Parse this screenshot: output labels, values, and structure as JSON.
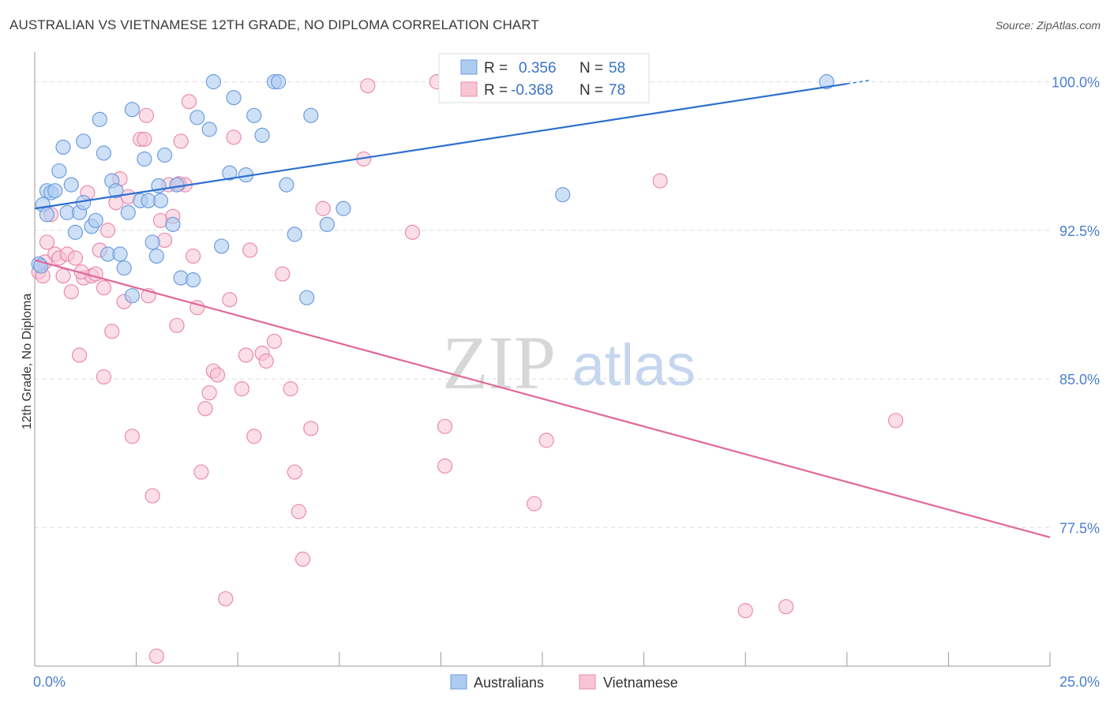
{
  "title": "AUSTRALIAN VS VIETNAMESE 12TH GRADE, NO DIPLOMA CORRELATION CHART",
  "source": "Source: ZipAtlas.com",
  "watermark": {
    "zip": "ZIP",
    "atlas": "atlas"
  },
  "colors": {
    "blue_fill": "#aecbf0",
    "blue_stroke": "#6d9de0",
    "blue_line": "#2d6fd0",
    "pink_fill": "#f8c5d5",
    "pink_stroke": "#ec8aab",
    "pink_line": "#e0689a",
    "tick_text": "#4a7fcf",
    "grid": "#dddddd"
  },
  "legend_stats": {
    "r_label": "R =",
    "n_label": "N =",
    "australians": {
      "r": "0.356",
      "n": "58"
    },
    "vietnamese": {
      "r": "-0.368",
      "n": "78"
    }
  },
  "chart_data": {
    "type": "scatter",
    "title": "AUSTRALIAN VS VIETNAMESE 12TH GRADE, NO DIPLOMA CORRELATION CHART",
    "xlabel": "",
    "ylabel": "12th Grade, No Diploma",
    "xlim": [
      0,
      25
    ],
    "ylim": [
      70.5,
      101.5
    ],
    "x_tick_labels": [
      {
        "value": 0,
        "label": "0.0%"
      },
      {
        "value": 25,
        "label": "25.0%"
      }
    ],
    "y_ticks": [
      {
        "value": 100,
        "label": "100.0%"
      },
      {
        "value": 92.5,
        "label": "92.5%"
      },
      {
        "value": 85,
        "label": "85.0%"
      },
      {
        "value": 77.5,
        "label": "77.5%"
      }
    ],
    "grid": "horizontal dashed",
    "legend_position": "bottom-center",
    "series": [
      {
        "name": "Australians",
        "trend": {
          "x": [
            0,
            20
          ],
          "y": [
            93.6,
            99.9
          ]
        },
        "points": [
          [
            0.2,
            93.8
          ],
          [
            0.3,
            93.3
          ],
          [
            0.3,
            94.5
          ],
          [
            0.4,
            94.4
          ],
          [
            0.5,
            94.5
          ],
          [
            0.6,
            95.5
          ],
          [
            0.7,
            96.7
          ],
          [
            0.8,
            93.4
          ],
          [
            0.9,
            94.8
          ],
          [
            1.0,
            92.4
          ],
          [
            1.1,
            93.4
          ],
          [
            1.2,
            93.9
          ],
          [
            1.2,
            97.0
          ],
          [
            1.4,
            92.7
          ],
          [
            1.5,
            93.0
          ],
          [
            1.6,
            98.1
          ],
          [
            1.7,
            96.4
          ],
          [
            1.8,
            91.3
          ],
          [
            1.9,
            95.0
          ],
          [
            2.0,
            94.5
          ],
          [
            2.1,
            91.3
          ],
          [
            2.2,
            90.6
          ],
          [
            2.3,
            93.4
          ],
          [
            2.4,
            89.2
          ],
          [
            2.4,
            98.6
          ],
          [
            2.6,
            94.0
          ],
          [
            2.7,
            96.1
          ],
          [
            2.8,
            94.0
          ],
          [
            2.9,
            91.9
          ],
          [
            3.0,
            91.2
          ],
          [
            3.1,
            94.0
          ],
          [
            3.2,
            96.3
          ],
          [
            3.4,
            92.8
          ],
          [
            3.5,
            94.8
          ],
          [
            3.6,
            90.1
          ],
          [
            3.9,
            90.0
          ],
          [
            4.0,
            98.2
          ],
          [
            4.3,
            97.6
          ],
          [
            4.4,
            100.0
          ],
          [
            4.6,
            91.7
          ],
          [
            4.8,
            95.4
          ],
          [
            4.9,
            99.2
          ],
          [
            5.2,
            95.3
          ],
          [
            5.4,
            98.3
          ],
          [
            5.6,
            97.3
          ],
          [
            5.9,
            100.0
          ],
          [
            6.0,
            100.0
          ],
          [
            6.2,
            94.8
          ],
          [
            6.4,
            92.3
          ],
          [
            6.7,
            89.1
          ],
          [
            6.8,
            98.3
          ],
          [
            7.2,
            92.8
          ],
          [
            7.6,
            93.6
          ],
          [
            13.0,
            94.3
          ],
          [
            19.5,
            100.0
          ],
          [
            0.1,
            90.8
          ],
          [
            0.15,
            90.7
          ],
          [
            3.05,
            94.75
          ]
        ]
      },
      {
        "name": "Vietnamese",
        "trend": {
          "x": [
            0,
            25
          ],
          "y": [
            91.0,
            77.0
          ]
        },
        "points": [
          [
            0.1,
            90.4
          ],
          [
            0.2,
            90.2
          ],
          [
            0.3,
            91.9
          ],
          [
            0.4,
            93.3
          ],
          [
            0.5,
            91.3
          ],
          [
            0.6,
            91.1
          ],
          [
            0.7,
            90.2
          ],
          [
            0.8,
            91.3
          ],
          [
            0.9,
            89.4
          ],
          [
            1.0,
            91.1
          ],
          [
            1.1,
            86.2
          ],
          [
            1.2,
            90.1
          ],
          [
            1.3,
            94.4
          ],
          [
            1.4,
            90.2
          ],
          [
            1.5,
            90.3
          ],
          [
            1.6,
            91.5
          ],
          [
            1.7,
            89.6
          ],
          [
            1.7,
            85.1
          ],
          [
            1.8,
            92.5
          ],
          [
            1.9,
            87.4
          ],
          [
            2.0,
            93.9
          ],
          [
            2.1,
            95.1
          ],
          [
            2.2,
            88.9
          ],
          [
            2.3,
            94.2
          ],
          [
            2.4,
            82.1
          ],
          [
            2.6,
            97.1
          ],
          [
            2.7,
            97.1
          ],
          [
            2.8,
            89.2
          ],
          [
            2.9,
            79.1
          ],
          [
            3.0,
            71.0
          ],
          [
            3.1,
            93.0
          ],
          [
            3.2,
            92.0
          ],
          [
            3.3,
            94.8
          ],
          [
            3.4,
            93.2
          ],
          [
            3.5,
            87.7
          ],
          [
            3.6,
            97.0
          ],
          [
            3.7,
            94.8
          ],
          [
            3.8,
            99.0
          ],
          [
            3.9,
            91.2
          ],
          [
            4.0,
            88.6
          ],
          [
            4.1,
            80.3
          ],
          [
            4.2,
            83.5
          ],
          [
            4.3,
            84.3
          ],
          [
            4.4,
            85.4
          ],
          [
            4.5,
            85.2
          ],
          [
            4.7,
            73.9
          ],
          [
            4.8,
            89.0
          ],
          [
            4.9,
            97.2
          ],
          [
            5.1,
            84.5
          ],
          [
            5.2,
            86.2
          ],
          [
            5.3,
            91.5
          ],
          [
            5.4,
            82.1
          ],
          [
            5.6,
            86.3
          ],
          [
            5.7,
            85.9
          ],
          [
            5.9,
            86.9
          ],
          [
            6.1,
            90.3
          ],
          [
            6.3,
            84.5
          ],
          [
            6.4,
            80.3
          ],
          [
            6.5,
            78.3
          ],
          [
            6.6,
            75.9
          ],
          [
            6.8,
            82.5
          ],
          [
            7.1,
            93.6
          ],
          [
            8.1,
            96.1
          ],
          [
            8.2,
            99.8
          ],
          [
            9.3,
            92.4
          ],
          [
            9.9,
            100.0
          ],
          [
            10.1,
            82.6
          ],
          [
            10.1,
            80.6
          ],
          [
            12.3,
            78.7
          ],
          [
            12.6,
            81.9
          ],
          [
            15.4,
            95.0
          ],
          [
            17.5,
            73.3
          ],
          [
            18.5,
            73.5
          ],
          [
            21.2,
            82.9
          ],
          [
            0.25,
            90.9
          ],
          [
            1.15,
            90.4
          ],
          [
            2.75,
            98.3
          ],
          [
            3.55,
            94.85
          ]
        ]
      }
    ]
  }
}
